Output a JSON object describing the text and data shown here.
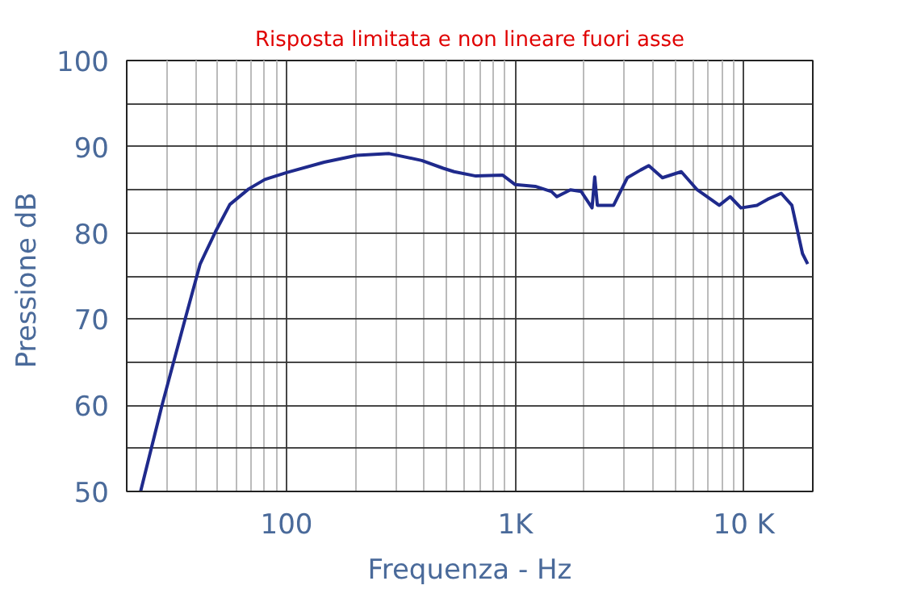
{
  "chart_data": {
    "type": "line",
    "title": "Risposta limitata e non lineare fuori asse",
    "xlabel": "Frequenza - Hz",
    "ylabel": "Pressione  dB",
    "log": "x",
    "xlim": [
      20,
      20000
    ],
    "xticks": [
      100,
      {
        "value": 1000,
        "label": "1K"
      },
      {
        "value": 10000,
        "label": "10 K"
      }
    ],
    "ylim": [
      50,
      100
    ],
    "yticks": [
      50,
      {
        "value": 55,
        "label": null
      },
      60,
      {
        "value": 65,
        "label": null
      },
      70,
      {
        "value": 75,
        "label": null
      },
      80,
      {
        "value": 85,
        "label": null
      },
      90,
      {
        "value": 95,
        "label": null
      },
      100
    ],
    "grid": true,
    "marker": "none",
    "line_style": "solid",
    "series": [
      {
        "color": "#1f2a8c",
        "x": [
          23,
          28.6,
          36.1,
          41.9,
          48.8,
          56.5,
          68.3,
          80.4,
          100,
          146,
          203,
          281,
          390,
          484,
          540,
          672,
          882,
          1000,
          1223,
          1440,
          1520,
          1742,
          1943,
          2167,
          2226,
          2286,
          2692,
          3090,
          3535,
          3835,
          4400,
          5320,
          6250,
          7800,
          8700,
          9700,
          11400,
          12700,
          14550,
          16200,
          18030,
          19000
        ],
        "values": [
          50,
          60.1,
          70.1,
          76.4,
          80.1,
          83.3,
          85.1,
          86.2,
          87,
          88.2,
          89,
          89.2,
          88.4,
          87.5,
          87.1,
          86.6,
          86.7,
          85.6,
          85.4,
          84.8,
          84.2,
          85,
          84.8,
          82.9,
          86.5,
          83.2,
          83.2,
          86.4,
          87.3,
          87.8,
          86.4,
          87.1,
          85,
          83.2,
          84.2,
          82.9,
          83.2,
          83.9,
          84.6,
          83.2,
          77.6,
          76.4
        ]
      }
    ]
  }
}
